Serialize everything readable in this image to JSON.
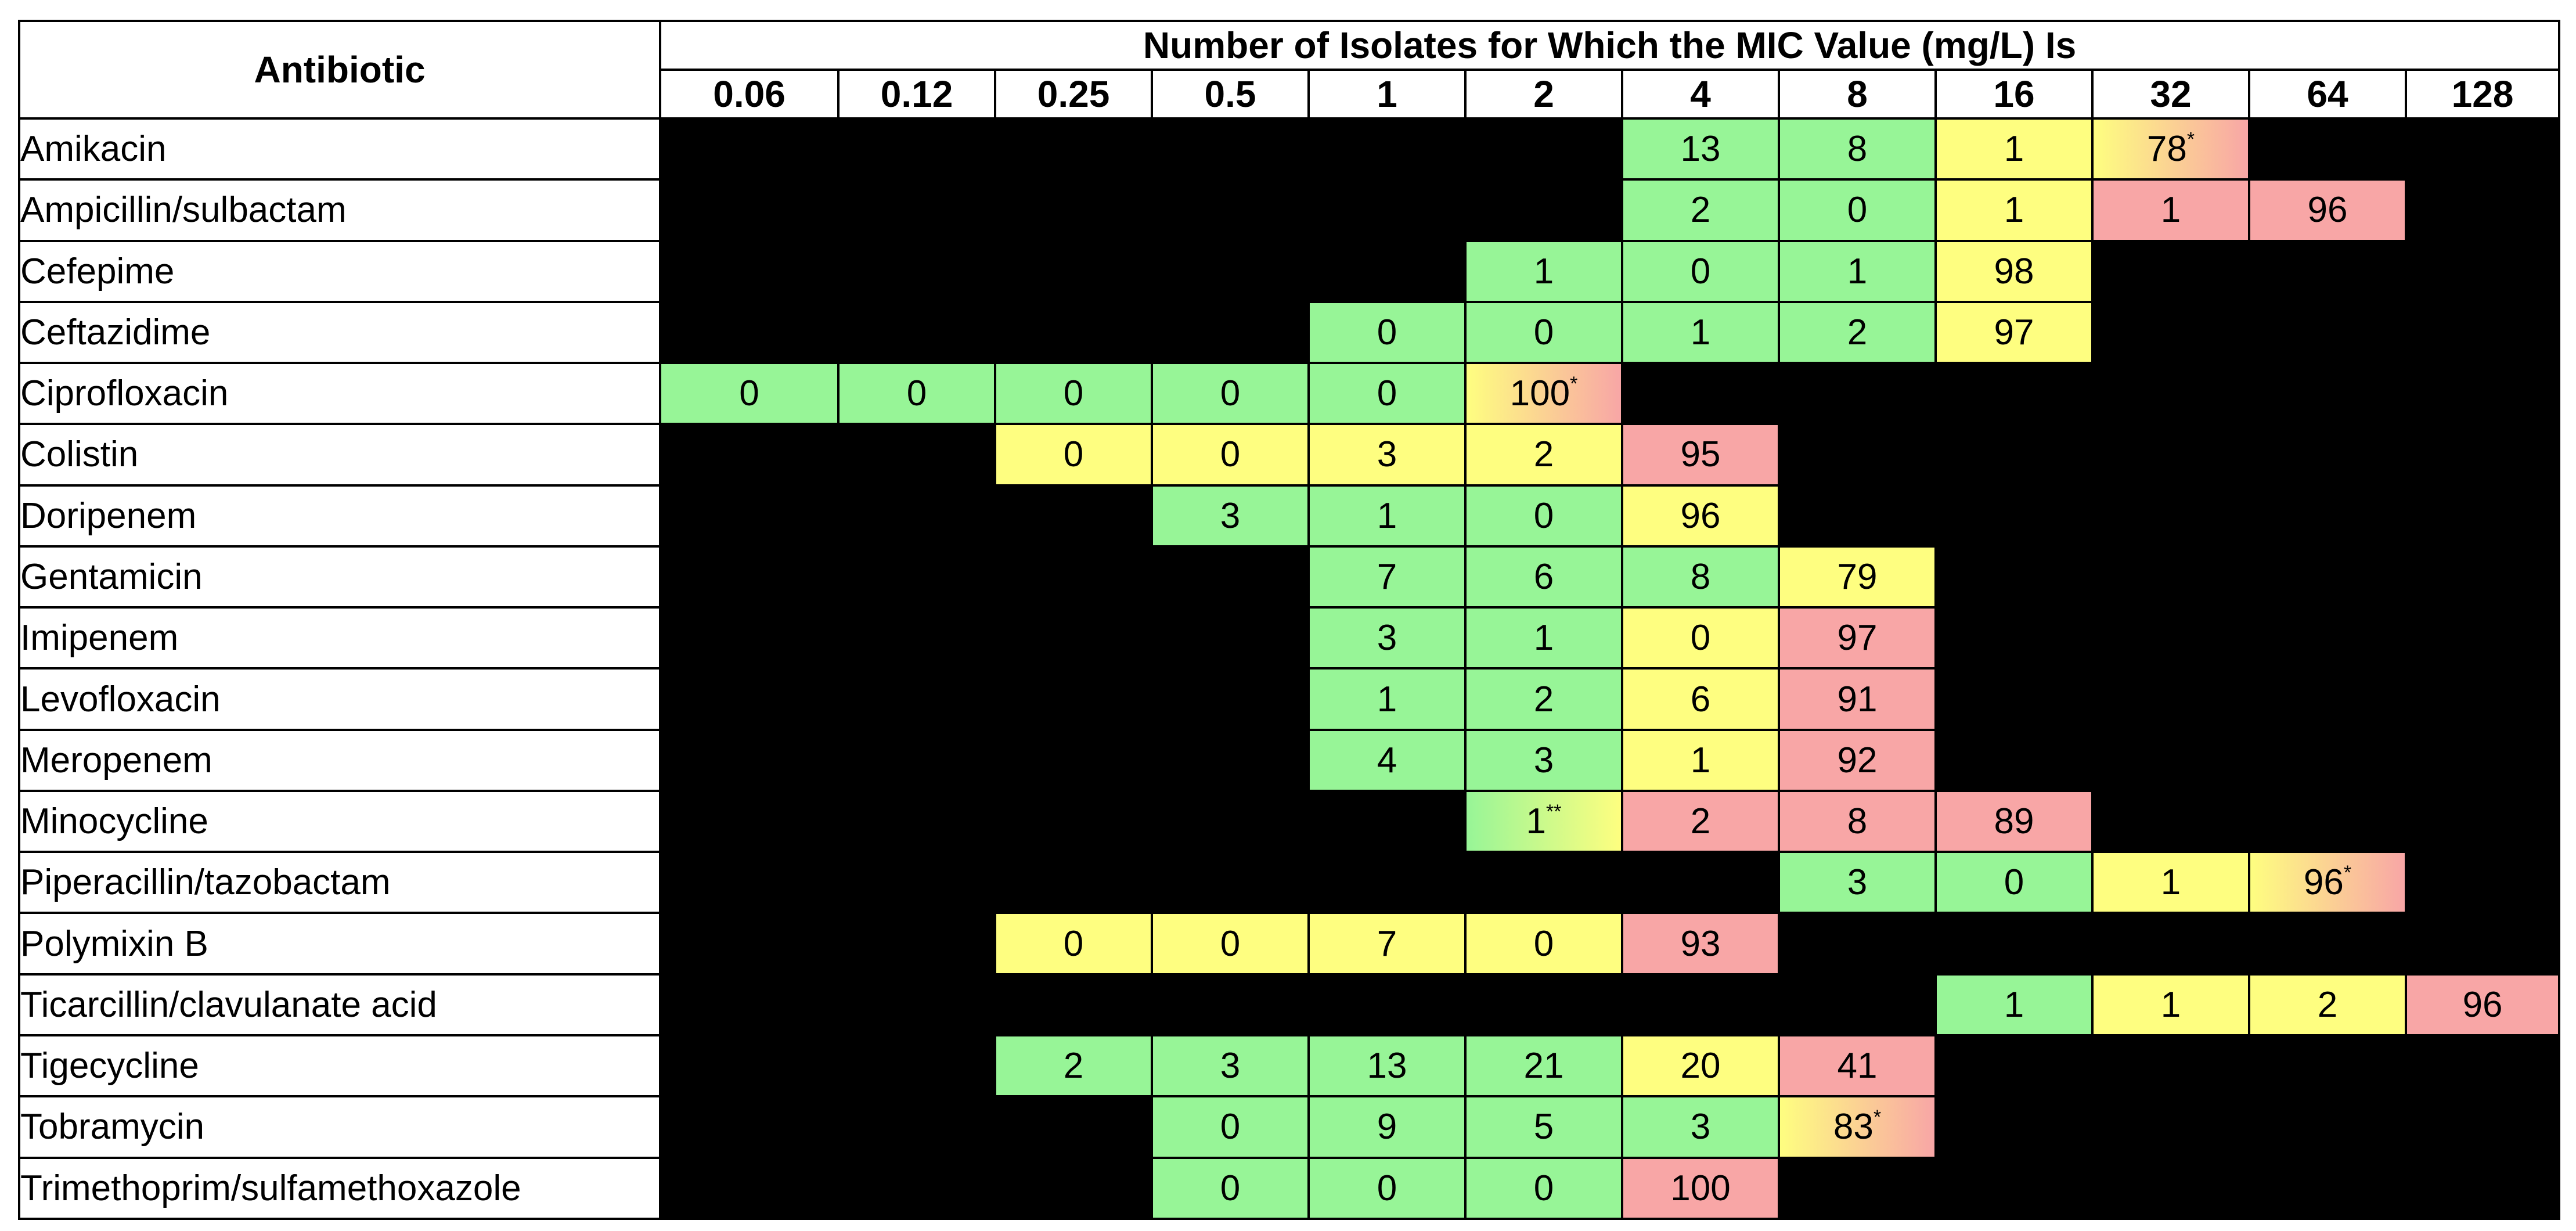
{
  "table": {
    "header_antibiotic": "Antibiotic",
    "header_title": "Number of Isolates for Which the MIC Value (mg/L) Is",
    "concentrations": [
      "0.06",
      "0.12",
      "0.25",
      "0.5",
      "1",
      "2",
      "4",
      "8",
      "16",
      "32",
      "64",
      "128"
    ],
    "colors": {
      "empty": "#000000",
      "green": "#97f597",
      "yellow": "#fefe80",
      "red": "#f8a6a6"
    },
    "rows": [
      {
        "antibiotic": "Amikacin",
        "cells": [
          {
            "c": 6,
            "v": "13",
            "color": "green"
          },
          {
            "c": 7,
            "v": "8",
            "color": "green"
          },
          {
            "c": 8,
            "v": "1",
            "color": "yellow"
          },
          {
            "c": 9,
            "v": "78",
            "note": "*",
            "color": "yellow-red"
          }
        ]
      },
      {
        "antibiotic": "Ampicillin/sulbactam",
        "cells": [
          {
            "c": 6,
            "v": "2",
            "color": "green"
          },
          {
            "c": 7,
            "v": "0",
            "color": "green"
          },
          {
            "c": 8,
            "v": "1",
            "color": "yellow"
          },
          {
            "c": 9,
            "v": "1",
            "color": "red"
          },
          {
            "c": 10,
            "v": "96",
            "color": "red"
          }
        ]
      },
      {
        "antibiotic": "Cefepime",
        "cells": [
          {
            "c": 5,
            "v": "1",
            "color": "green"
          },
          {
            "c": 6,
            "v": "0",
            "color": "green"
          },
          {
            "c": 7,
            "v": "1",
            "color": "green"
          },
          {
            "c": 8,
            "v": "98",
            "color": "yellow"
          }
        ]
      },
      {
        "antibiotic": "Ceftazidime",
        "cells": [
          {
            "c": 4,
            "v": "0",
            "color": "green"
          },
          {
            "c": 5,
            "v": "0",
            "color": "green"
          },
          {
            "c": 6,
            "v": "1",
            "color": "green"
          },
          {
            "c": 7,
            "v": "2",
            "color": "green"
          },
          {
            "c": 8,
            "v": "97",
            "color": "yellow"
          }
        ]
      },
      {
        "antibiotic": "Ciprofloxacin",
        "cells": [
          {
            "c": 0,
            "v": "0",
            "color": "green"
          },
          {
            "c": 1,
            "v": "0",
            "color": "green"
          },
          {
            "c": 2,
            "v": "0",
            "color": "green"
          },
          {
            "c": 3,
            "v": "0",
            "color": "green"
          },
          {
            "c": 4,
            "v": "0",
            "color": "green"
          },
          {
            "c": 5,
            "v": "100",
            "note": "*",
            "color": "yellow-red"
          }
        ]
      },
      {
        "antibiotic": "Colistin",
        "cells": [
          {
            "c": 2,
            "v": "0",
            "color": "yellow"
          },
          {
            "c": 3,
            "v": "0",
            "color": "yellow"
          },
          {
            "c": 4,
            "v": "3",
            "color": "yellow"
          },
          {
            "c": 5,
            "v": "2",
            "color": "yellow"
          },
          {
            "c": 6,
            "v": "95",
            "color": "red"
          }
        ]
      },
      {
        "antibiotic": "Doripenem",
        "cells": [
          {
            "c": 3,
            "v": "3",
            "color": "green"
          },
          {
            "c": 4,
            "v": "1",
            "color": "green"
          },
          {
            "c": 5,
            "v": "0",
            "color": "green"
          },
          {
            "c": 6,
            "v": "96",
            "color": "yellow"
          }
        ]
      },
      {
        "antibiotic": "Gentamicin",
        "cells": [
          {
            "c": 4,
            "v": "7",
            "color": "green"
          },
          {
            "c": 5,
            "v": "6",
            "color": "green"
          },
          {
            "c": 6,
            "v": "8",
            "color": "green"
          },
          {
            "c": 7,
            "v": "79",
            "color": "yellow"
          }
        ]
      },
      {
        "antibiotic": "Imipenem",
        "cells": [
          {
            "c": 4,
            "v": "3",
            "color": "green"
          },
          {
            "c": 5,
            "v": "1",
            "color": "green"
          },
          {
            "c": 6,
            "v": "0",
            "color": "yellow"
          },
          {
            "c": 7,
            "v": "97",
            "color": "red"
          }
        ]
      },
      {
        "antibiotic": "Levofloxacin",
        "cells": [
          {
            "c": 4,
            "v": "1",
            "color": "green"
          },
          {
            "c": 5,
            "v": "2",
            "color": "green"
          },
          {
            "c": 6,
            "v": "6",
            "color": "yellow"
          },
          {
            "c": 7,
            "v": "91",
            "color": "red"
          }
        ]
      },
      {
        "antibiotic": "Meropenem",
        "cells": [
          {
            "c": 4,
            "v": "4",
            "color": "green"
          },
          {
            "c": 5,
            "v": "3",
            "color": "green"
          },
          {
            "c": 6,
            "v": "1",
            "color": "yellow"
          },
          {
            "c": 7,
            "v": "92",
            "color": "red"
          }
        ]
      },
      {
        "antibiotic": "Minocycline",
        "cells": [
          {
            "c": 5,
            "v": "1",
            "note": "**",
            "color": "green-yellow"
          },
          {
            "c": 6,
            "v": "2",
            "color": "red"
          },
          {
            "c": 7,
            "v": "8",
            "color": "red"
          },
          {
            "c": 8,
            "v": "89",
            "color": "red"
          }
        ]
      },
      {
        "antibiotic": "Piperacillin/tazobactam",
        "cells": [
          {
            "c": 7,
            "v": "3",
            "color": "green"
          },
          {
            "c": 8,
            "v": "0",
            "color": "green"
          },
          {
            "c": 9,
            "v": "1",
            "color": "yellow"
          },
          {
            "c": 10,
            "v": "96",
            "note": "*",
            "color": "yellow-red"
          }
        ]
      },
      {
        "antibiotic": "Polymixin B",
        "cells": [
          {
            "c": 2,
            "v": "0",
            "color": "yellow"
          },
          {
            "c": 3,
            "v": "0",
            "color": "yellow"
          },
          {
            "c": 4,
            "v": "7",
            "color": "yellow"
          },
          {
            "c": 5,
            "v": "0",
            "color": "yellow"
          },
          {
            "c": 6,
            "v": "93",
            "color": "red"
          }
        ]
      },
      {
        "antibiotic": "Ticarcillin/clavulanate acid",
        "cells": [
          {
            "c": 8,
            "v": "1",
            "color": "green"
          },
          {
            "c": 9,
            "v": "1",
            "color": "yellow"
          },
          {
            "c": 10,
            "v": "2",
            "color": "yellow"
          },
          {
            "c": 11,
            "v": "96",
            "color": "red"
          }
        ]
      },
      {
        "antibiotic": "Tigecycline",
        "cells": [
          {
            "c": 2,
            "v": "2",
            "color": "green"
          },
          {
            "c": 3,
            "v": "3",
            "color": "green"
          },
          {
            "c": 4,
            "v": "13",
            "color": "green"
          },
          {
            "c": 5,
            "v": "21",
            "color": "green"
          },
          {
            "c": 6,
            "v": "20",
            "color": "yellow"
          },
          {
            "c": 7,
            "v": "41",
            "color": "red"
          }
        ]
      },
      {
        "antibiotic": "Tobramycin",
        "cells": [
          {
            "c": 3,
            "v": "0",
            "color": "green"
          },
          {
            "c": 4,
            "v": "9",
            "color": "green"
          },
          {
            "c": 5,
            "v": "5",
            "color": "green"
          },
          {
            "c": 6,
            "v": "3",
            "color": "green"
          },
          {
            "c": 7,
            "v": "83",
            "note": "*",
            "color": "yellow-red"
          }
        ]
      },
      {
        "antibiotic": "Trimethoprim/sulfamethoxazole",
        "cells": [
          {
            "c": 3,
            "v": "0",
            "color": "green"
          },
          {
            "c": 4,
            "v": "0",
            "color": "green"
          },
          {
            "c": 5,
            "v": "0",
            "color": "green"
          },
          {
            "c": 6,
            "v": "100",
            "color": "red"
          }
        ]
      }
    ]
  }
}
